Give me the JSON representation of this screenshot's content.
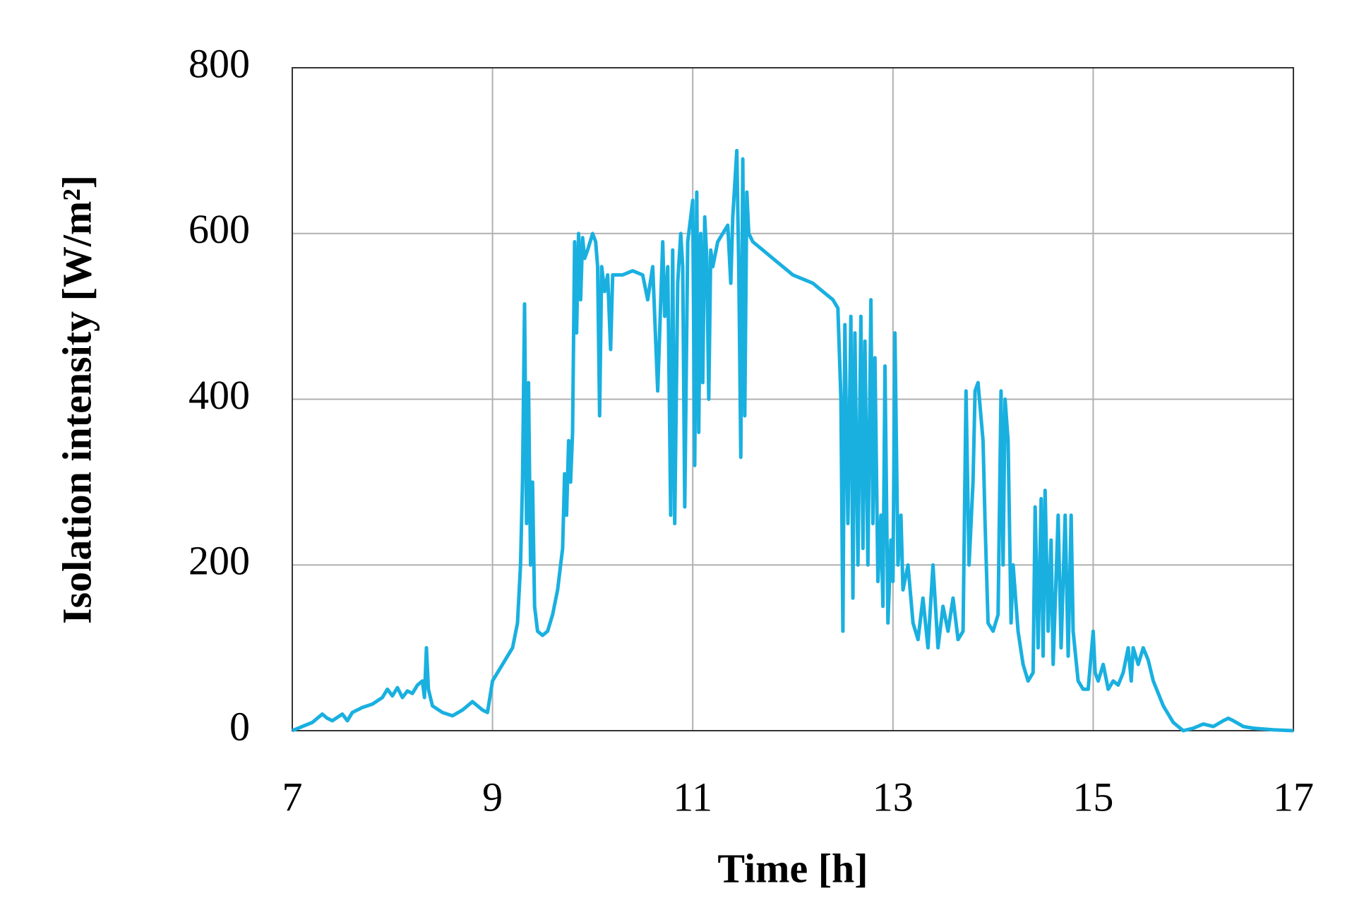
{
  "chart_data": {
    "type": "line",
    "xlabel": "Time [h]",
    "ylabel": "Isolation intensity [W/m²]",
    "color": "#19b0e0",
    "grid": true,
    "xlim": [
      7,
      17
    ],
    "xticks": [
      7,
      9,
      11,
      13,
      15,
      17
    ],
    "ylim": [
      0,
      800
    ],
    "yticks": [
      0,
      200,
      400,
      600,
      800
    ],
    "x": [
      7.0,
      7.1,
      7.2,
      7.3,
      7.35,
      7.4,
      7.5,
      7.55,
      7.6,
      7.7,
      7.8,
      7.9,
      7.95,
      8.0,
      8.05,
      8.1,
      8.15,
      8.2,
      8.25,
      8.3,
      8.32,
      8.34,
      8.36,
      8.4,
      8.5,
      8.6,
      8.7,
      8.8,
      8.85,
      8.9,
      8.95,
      9.0,
      9.05,
      9.1,
      9.2,
      9.25,
      9.28,
      9.3,
      9.32,
      9.34,
      9.36,
      9.38,
      9.4,
      9.42,
      9.45,
      9.5,
      9.55,
      9.6,
      9.65,
      9.7,
      9.72,
      9.74,
      9.76,
      9.78,
      9.8,
      9.82,
      9.84,
      9.86,
      9.88,
      9.9,
      9.92,
      9.95,
      10.0,
      10.03,
      10.05,
      10.07,
      10.09,
      10.12,
      10.15,
      10.18,
      10.2,
      10.3,
      10.4,
      10.5,
      10.55,
      10.6,
      10.65,
      10.7,
      10.72,
      10.75,
      10.78,
      10.8,
      10.82,
      10.85,
      10.88,
      10.9,
      10.92,
      10.95,
      10.98,
      11.0,
      11.02,
      11.04,
      11.06,
      11.08,
      11.1,
      11.12,
      11.14,
      11.16,
      11.18,
      11.2,
      11.25,
      11.3,
      11.35,
      11.38,
      11.4,
      11.42,
      11.44,
      11.46,
      11.48,
      11.5,
      11.52,
      11.54,
      11.56,
      11.6,
      11.7,
      11.8,
      11.9,
      12.0,
      12.1,
      12.2,
      12.3,
      12.4,
      12.45,
      12.48,
      12.5,
      12.52,
      12.55,
      12.58,
      12.6,
      12.62,
      12.65,
      12.68,
      12.7,
      12.72,
      12.75,
      12.78,
      12.8,
      12.82,
      12.85,
      12.88,
      12.9,
      12.92,
      12.95,
      12.98,
      13.0,
      13.02,
      13.05,
      13.08,
      13.1,
      13.15,
      13.2,
      13.25,
      13.3,
      13.35,
      13.4,
      13.45,
      13.5,
      13.55,
      13.6,
      13.65,
      13.7,
      13.73,
      13.76,
      13.8,
      13.82,
      13.85,
      13.9,
      13.92,
      13.95,
      14.0,
      14.05,
      14.08,
      14.1,
      14.12,
      14.15,
      14.18,
      14.2,
      14.25,
      14.3,
      14.35,
      14.4,
      14.42,
      14.45,
      14.48,
      14.5,
      14.52,
      14.55,
      14.58,
      14.6,
      14.65,
      14.68,
      14.72,
      14.75,
      14.78,
      14.8,
      14.85,
      14.9,
      14.95,
      15.0,
      15.02,
      15.05,
      15.1,
      15.15,
      15.2,
      15.25,
      15.3,
      15.35,
      15.38,
      15.4,
      15.45,
      15.5,
      15.55,
      15.6,
      15.7,
      15.8,
      15.9,
      16.0,
      16.1,
      16.2,
      16.3,
      16.35,
      16.4,
      16.5,
      16.6,
      16.8,
      17.0
    ],
    "values": [
      0,
      5,
      10,
      20,
      15,
      12,
      20,
      12,
      22,
      28,
      32,
      40,
      50,
      42,
      52,
      40,
      48,
      45,
      55,
      60,
      40,
      100,
      50,
      30,
      22,
      18,
      25,
      35,
      30,
      25,
      22,
      60,
      70,
      80,
      100,
      130,
      200,
      300,
      515,
      250,
      420,
      200,
      300,
      150,
      120,
      115,
      120,
      140,
      170,
      220,
      310,
      260,
      350,
      300,
      360,
      590,
      480,
      600,
      520,
      595,
      570,
      580,
      600,
      590,
      560,
      380,
      560,
      530,
      550,
      460,
      550,
      550,
      555,
      550,
      520,
      560,
      410,
      590,
      500,
      560,
      260,
      580,
      250,
      540,
      600,
      560,
      270,
      590,
      620,
      640,
      320,
      650,
      360,
      600,
      420,
      620,
      570,
      400,
      580,
      560,
      590,
      600,
      610,
      540,
      620,
      660,
      700,
      560,
      330,
      690,
      380,
      650,
      600,
      590,
      580,
      570,
      560,
      550,
      545,
      540,
      530,
      520,
      510,
      400,
      120,
      490,
      250,
      500,
      160,
      480,
      200,
      500,
      220,
      470,
      200,
      520,
      250,
      450,
      180,
      260,
      150,
      440,
      130,
      230,
      180,
      480,
      200,
      260,
      170,
      200,
      130,
      110,
      160,
      100,
      200,
      100,
      150,
      120,
      160,
      110,
      120,
      410,
      200,
      300,
      410,
      420,
      350,
      250,
      130,
      120,
      140,
      410,
      200,
      400,
      350,
      130,
      200,
      120,
      80,
      60,
      70,
      270,
      100,
      280,
      90,
      290,
      120,
      230,
      80,
      260,
      100,
      260,
      90,
      260,
      120,
      60,
      50,
      50,
      120,
      70,
      60,
      80,
      50,
      60,
      55,
      70,
      100,
      60,
      100,
      80,
      100,
      85,
      60,
      30,
      10,
      0,
      3,
      8,
      5,
      12,
      15,
      12,
      5,
      3,
      1,
      0
    ]
  }
}
